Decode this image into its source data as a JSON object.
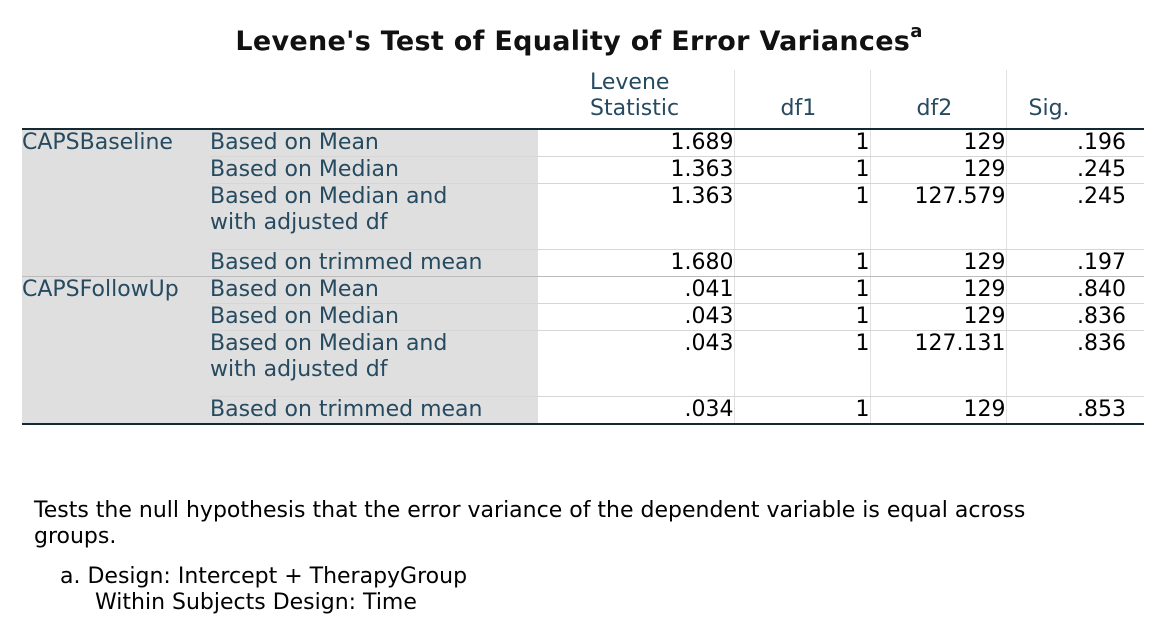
{
  "title": "Levene's Test of Equality of Error Variances",
  "title_sup": "a",
  "columns": {
    "levene_line1": "Levene",
    "levene_line2": "Statistic",
    "df1": "df1",
    "df2": "df2",
    "sig": "Sig."
  },
  "groups": [
    {
      "name": "CAPSBaseline",
      "rows": [
        {
          "label": "Based on Mean",
          "label2": "",
          "stat": "1.689",
          "df1": "1",
          "df2": "129",
          "sig": ".196"
        },
        {
          "label": "Based on Median",
          "label2": "",
          "stat": "1.363",
          "df1": "1",
          "df2": "129",
          "sig": ".245"
        },
        {
          "label": "Based on Median and",
          "label2": "with adjusted df",
          "stat": "1.363",
          "df1": "1",
          "df2": "127.579",
          "sig": ".245"
        },
        {
          "label": "Based on trimmed mean",
          "label2": "",
          "stat": "1.680",
          "df1": "1",
          "df2": "129",
          "sig": ".197"
        }
      ]
    },
    {
      "name": "CAPSFollowUp",
      "rows": [
        {
          "label": "Based on Mean",
          "label2": "",
          "stat": ".041",
          "df1": "1",
          "df2": "129",
          "sig": ".840"
        },
        {
          "label": "Based on Median",
          "label2": "",
          "stat": ".043",
          "df1": "1",
          "df2": "129",
          "sig": ".836"
        },
        {
          "label": "Based on Median and",
          "label2": "with adjusted df",
          "stat": ".043",
          "df1": "1",
          "df2": "127.131",
          "sig": ".836"
        },
        {
          "label": "Based on trimmed mean",
          "label2": "",
          "stat": ".034",
          "df1": "1",
          "df2": "129",
          "sig": ".853"
        }
      ]
    }
  ],
  "footnotes": {
    "note_line1": "Tests the null hypothesis that the error variance of the dependent variable is equal across",
    "note_line2": "groups.",
    "a_line1": "a. Design: Intercept + TherapyGroup",
    "a_line2": "Within Subjects Design: Time"
  }
}
